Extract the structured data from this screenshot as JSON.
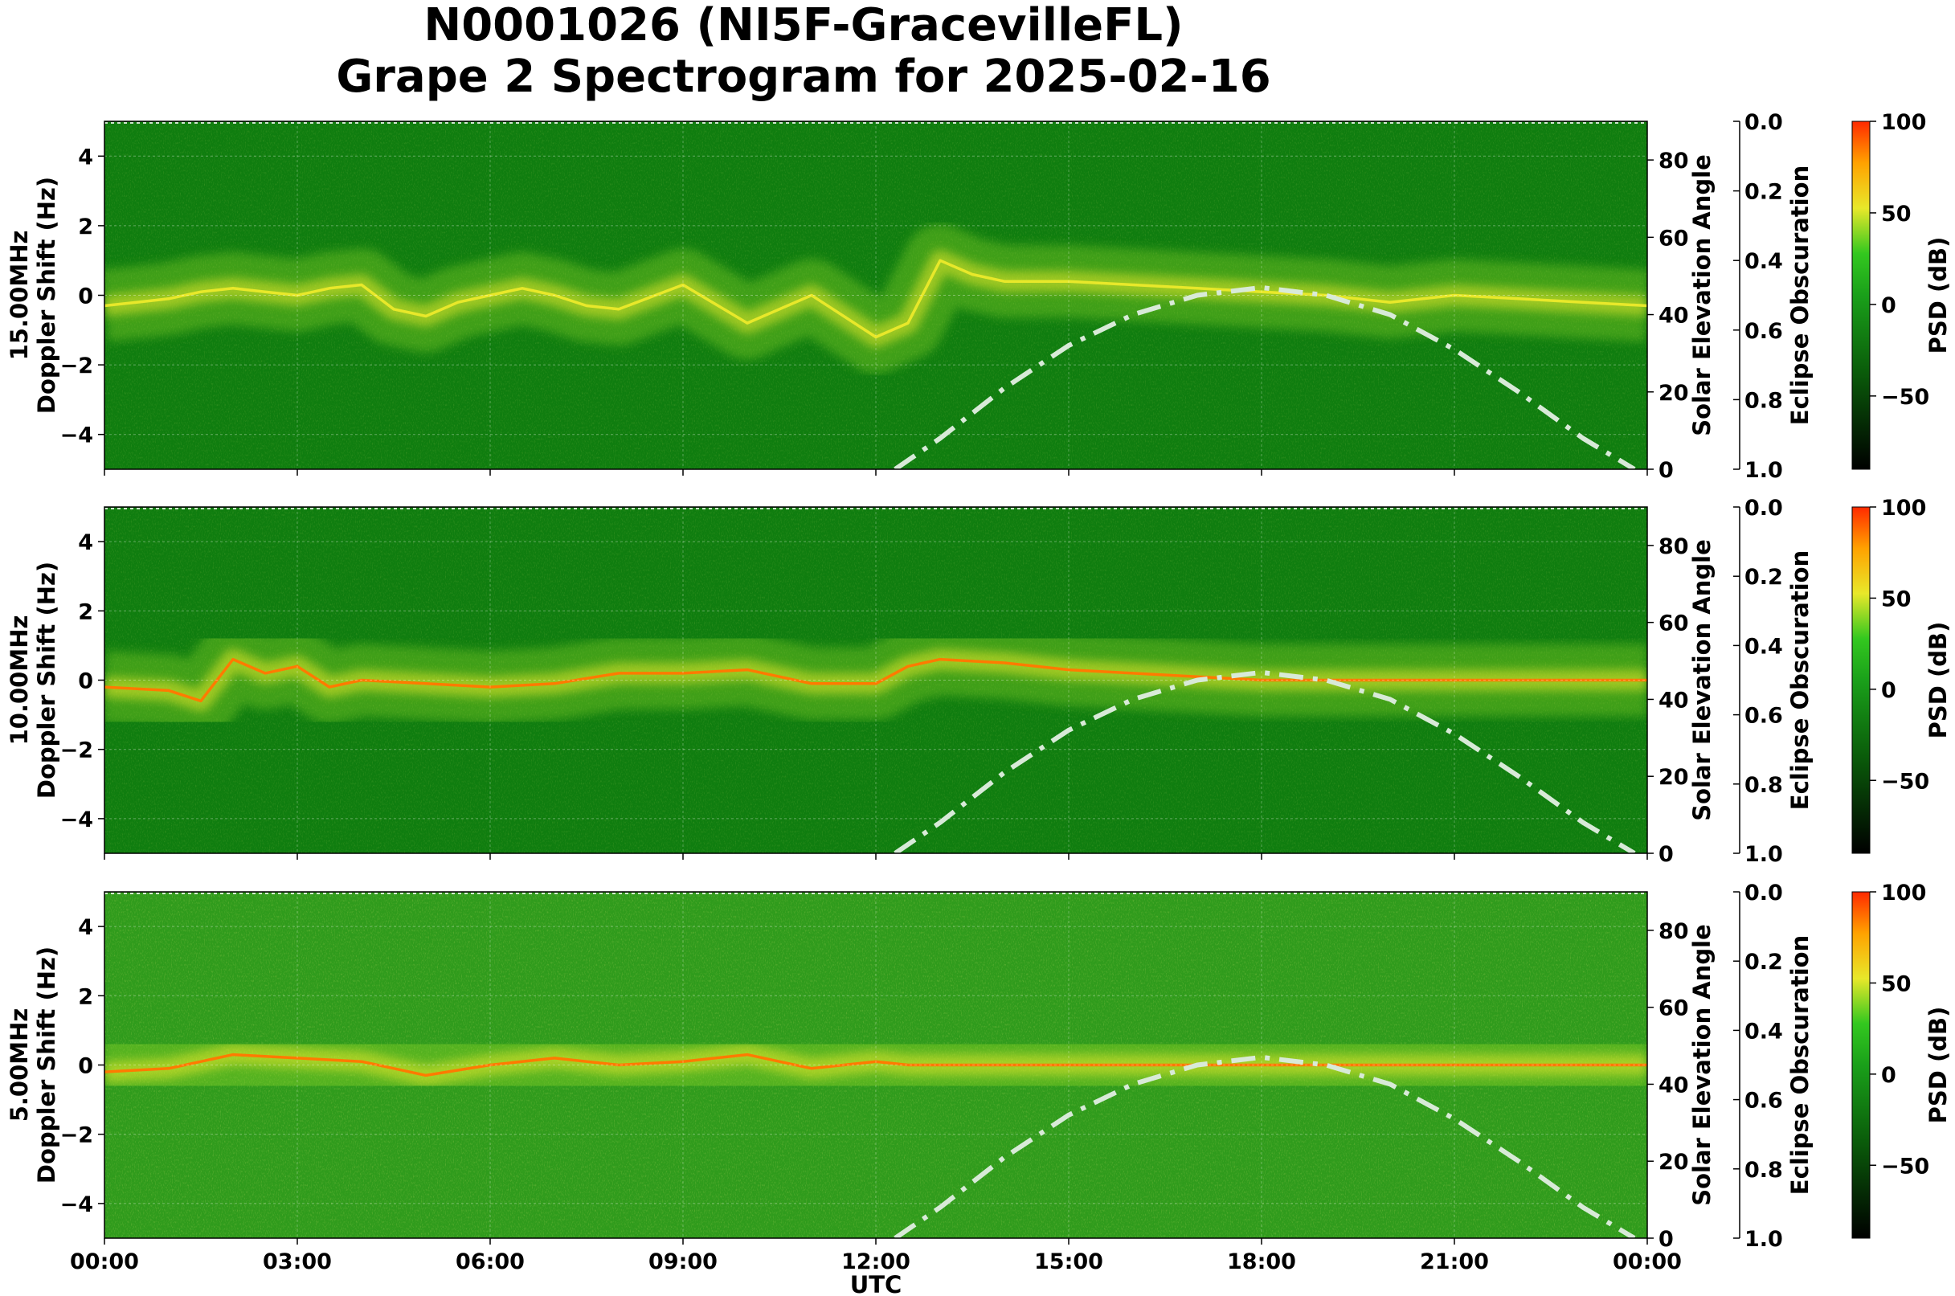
{
  "title": {
    "line1": "N0001026 (NI5F-GracevilleFL)",
    "line2": "Grape 2 Spectrogram for 2025-02-16"
  },
  "colors": {
    "background_green": "#0f7d0f",
    "dark_green": "#0a5c0a",
    "yellow": "#e8e82a",
    "red": "#ff2a00",
    "solar_line": "#d8ead8"
  },
  "chart_data": [
    {
      "type": "heatmap",
      "panel": "15MHz",
      "ylabel_line1": "15.00MHz",
      "ylabel_line2": "Doppler Shift (Hz)",
      "ylim": [
        -5,
        5
      ],
      "yticks": [
        4,
        2,
        0,
        -2,
        -4
      ],
      "ytick_labels": [
        "4",
        "2",
        "0",
        "−2",
        "−4"
      ],
      "right_axis_label": "Solar Elevation Angle",
      "right_ylim": [
        0,
        90
      ],
      "right_ticks": [
        0,
        20,
        40,
        60,
        80
      ],
      "right_tick_labels": [
        "0",
        "20",
        "40",
        "60",
        "80"
      ],
      "eclipse_label": "Eclipse Obscuration",
      "eclipse_ticks": [
        0.0,
        0.2,
        0.4,
        0.6,
        0.8,
        1.0
      ],
      "eclipse_tick_labels": [
        "0.0",
        "0.2",
        "0.4",
        "0.6",
        "0.8",
        "1.0"
      ],
      "colorbar_label": "PSD (dB)",
      "colorbar_range": [
        -90,
        100
      ],
      "colorbar_ticks": [
        100,
        50,
        0,
        -50
      ],
      "colorbar_tick_labels": [
        "100",
        "50",
        "0",
        "−50"
      ],
      "carrier_trace": {
        "x_hours": [
          0,
          0.5,
          1,
          1.5,
          2,
          2.5,
          3,
          3.5,
          4,
          4.5,
          5,
          5.5,
          6,
          6.5,
          7,
          7.5,
          8,
          9,
          10,
          11,
          12,
          12.5,
          13,
          13.5,
          14,
          15,
          16,
          17,
          18,
          19,
          20,
          21,
          22,
          23,
          24
        ],
        "doppler_hz": [
          -0.3,
          -0.2,
          -0.1,
          0.1,
          0.2,
          0.1,
          0.0,
          0.2,
          0.3,
          -0.4,
          -0.6,
          -0.2,
          0.0,
          0.2,
          0.0,
          -0.3,
          -0.4,
          0.3,
          -0.8,
          0.0,
          -1.2,
          -0.8,
          1.0,
          0.6,
          0.4,
          0.4,
          0.3,
          0.2,
          0.1,
          0.0,
          -0.2,
          0.0,
          -0.1,
          -0.2,
          -0.3
        ]
      }
    },
    {
      "type": "heatmap",
      "panel": "10MHz",
      "ylabel_line1": "10.00MHz",
      "ylabel_line2": "Doppler Shift (Hz)",
      "ylim": [
        -5,
        5
      ],
      "yticks": [
        4,
        2,
        0,
        -2,
        -4
      ],
      "ytick_labels": [
        "4",
        "2",
        "0",
        "−2",
        "−4"
      ],
      "right_axis_label": "Solar Elevation Angle",
      "right_ylim": [
        0,
        90
      ],
      "right_ticks": [
        0,
        20,
        40,
        60,
        80
      ],
      "right_tick_labels": [
        "0",
        "20",
        "40",
        "60",
        "80"
      ],
      "eclipse_label": "Eclipse Obscuration",
      "eclipse_ticks": [
        0.0,
        0.2,
        0.4,
        0.6,
        0.8,
        1.0
      ],
      "eclipse_tick_labels": [
        "0.0",
        "0.2",
        "0.4",
        "0.6",
        "0.8",
        "1.0"
      ],
      "colorbar_label": "PSD (dB)",
      "colorbar_range": [
        -90,
        100
      ],
      "colorbar_ticks": [
        100,
        50,
        0,
        -50
      ],
      "colorbar_tick_labels": [
        "100",
        "50",
        "0",
        "−50"
      ],
      "carrier_trace": {
        "x_hours": [
          0,
          1,
          1.5,
          2,
          2.5,
          3,
          3.5,
          4,
          5,
          6,
          7,
          8,
          9,
          10,
          11,
          12,
          12.5,
          13,
          14,
          15,
          16,
          17,
          18,
          19,
          20,
          21,
          22,
          23,
          24
        ],
        "doppler_hz": [
          -0.2,
          -0.3,
          -0.6,
          0.6,
          0.2,
          0.4,
          -0.2,
          0.0,
          -0.1,
          -0.2,
          -0.1,
          0.2,
          0.2,
          0.3,
          -0.1,
          -0.1,
          0.4,
          0.6,
          0.5,
          0.3,
          0.2,
          0.1,
          0.0,
          0.0,
          0.0,
          0.0,
          0.0,
          0.0,
          0.0
        ]
      }
    },
    {
      "type": "heatmap",
      "panel": "5MHz",
      "ylabel_line1": "5.00MHz",
      "ylabel_line2": "Doppler Shift (Hz)",
      "ylim": [
        -5,
        5
      ],
      "yticks": [
        4,
        2,
        0,
        -2,
        -4
      ],
      "ytick_labels": [
        "4",
        "2",
        "0",
        "−2",
        "−4"
      ],
      "right_axis_label": "Solar Elevation Angle",
      "right_ylim": [
        0,
        90
      ],
      "right_ticks": [
        0,
        20,
        40,
        60,
        80
      ],
      "right_tick_labels": [
        "0",
        "20",
        "40",
        "60",
        "80"
      ],
      "eclipse_label": "Eclipse Obscuration",
      "eclipse_ticks": [
        0.0,
        0.2,
        0.4,
        0.6,
        0.8,
        1.0
      ],
      "eclipse_tick_labels": [
        "0.0",
        "0.2",
        "0.4",
        "0.6",
        "0.8",
        "1.0"
      ],
      "colorbar_label": "PSD (dB)",
      "colorbar_range": [
        -90,
        100
      ],
      "colorbar_ticks": [
        100,
        50,
        0,
        -50
      ],
      "colorbar_tick_labels": [
        "100",
        "50",
        "0",
        "−50"
      ],
      "carrier_trace": {
        "x_hours": [
          0,
          1,
          2,
          3,
          4,
          5,
          6,
          7,
          8,
          9,
          10,
          11,
          12,
          12.5,
          13,
          14,
          15,
          16,
          18,
          20,
          22,
          24
        ],
        "doppler_hz": [
          -0.2,
          -0.1,
          0.3,
          0.2,
          0.1,
          -0.3,
          0.0,
          0.2,
          0.0,
          0.1,
          0.3,
          -0.1,
          0.1,
          0.0,
          0.0,
          0.0,
          0.0,
          0.0,
          0.0,
          0.0,
          0.0,
          0.0
        ]
      }
    }
  ],
  "shared_x": {
    "xlabel": "UTC",
    "xlim_hours": [
      0,
      24
    ],
    "tick_hours": [
      0,
      3,
      6,
      9,
      12,
      15,
      18,
      21,
      24
    ],
    "tick_labels": [
      "00:00",
      "03:00",
      "06:00",
      "09:00",
      "12:00",
      "15:00",
      "18:00",
      "21:00",
      "00:00"
    ]
  },
  "solar_elevation": {
    "x_hours": [
      12.3,
      13,
      14,
      15,
      16,
      17,
      18,
      19,
      20,
      21,
      22,
      23,
      23.8
    ],
    "angle_deg": [
      0,
      8,
      21,
      32,
      40,
      45,
      47,
      45,
      40,
      31,
      20,
      8,
      0
    ]
  }
}
